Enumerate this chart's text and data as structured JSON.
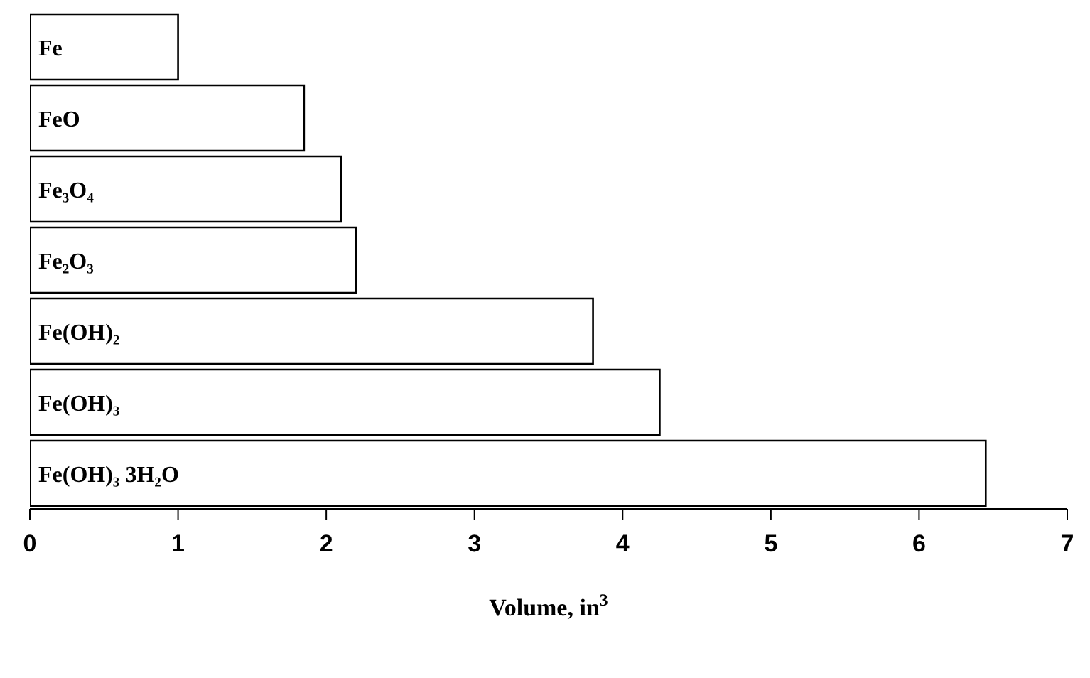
{
  "chart_data": {
    "type": "bar",
    "orientation": "horizontal",
    "xlabel": "Volume, in$^{3}$",
    "categories": [
      "Fe",
      "FeO",
      "Fe₃O₄",
      "Fe₂O₃",
      "Fe(OH)₂",
      "Fe(OH)₃",
      "Fe(OH)₃ 3H₂O"
    ],
    "values": [
      1.0,
      1.85,
      2.1,
      2.2,
      3.8,
      4.25,
      6.45
    ],
    "color": "#ffffff",
    "xlim": [
      0,
      7
    ],
    "xticks": [
      0,
      1,
      2,
      3,
      4,
      5,
      6,
      7
    ],
    "grid": false,
    "legend": false,
    "tick_labels": "x"
  }
}
